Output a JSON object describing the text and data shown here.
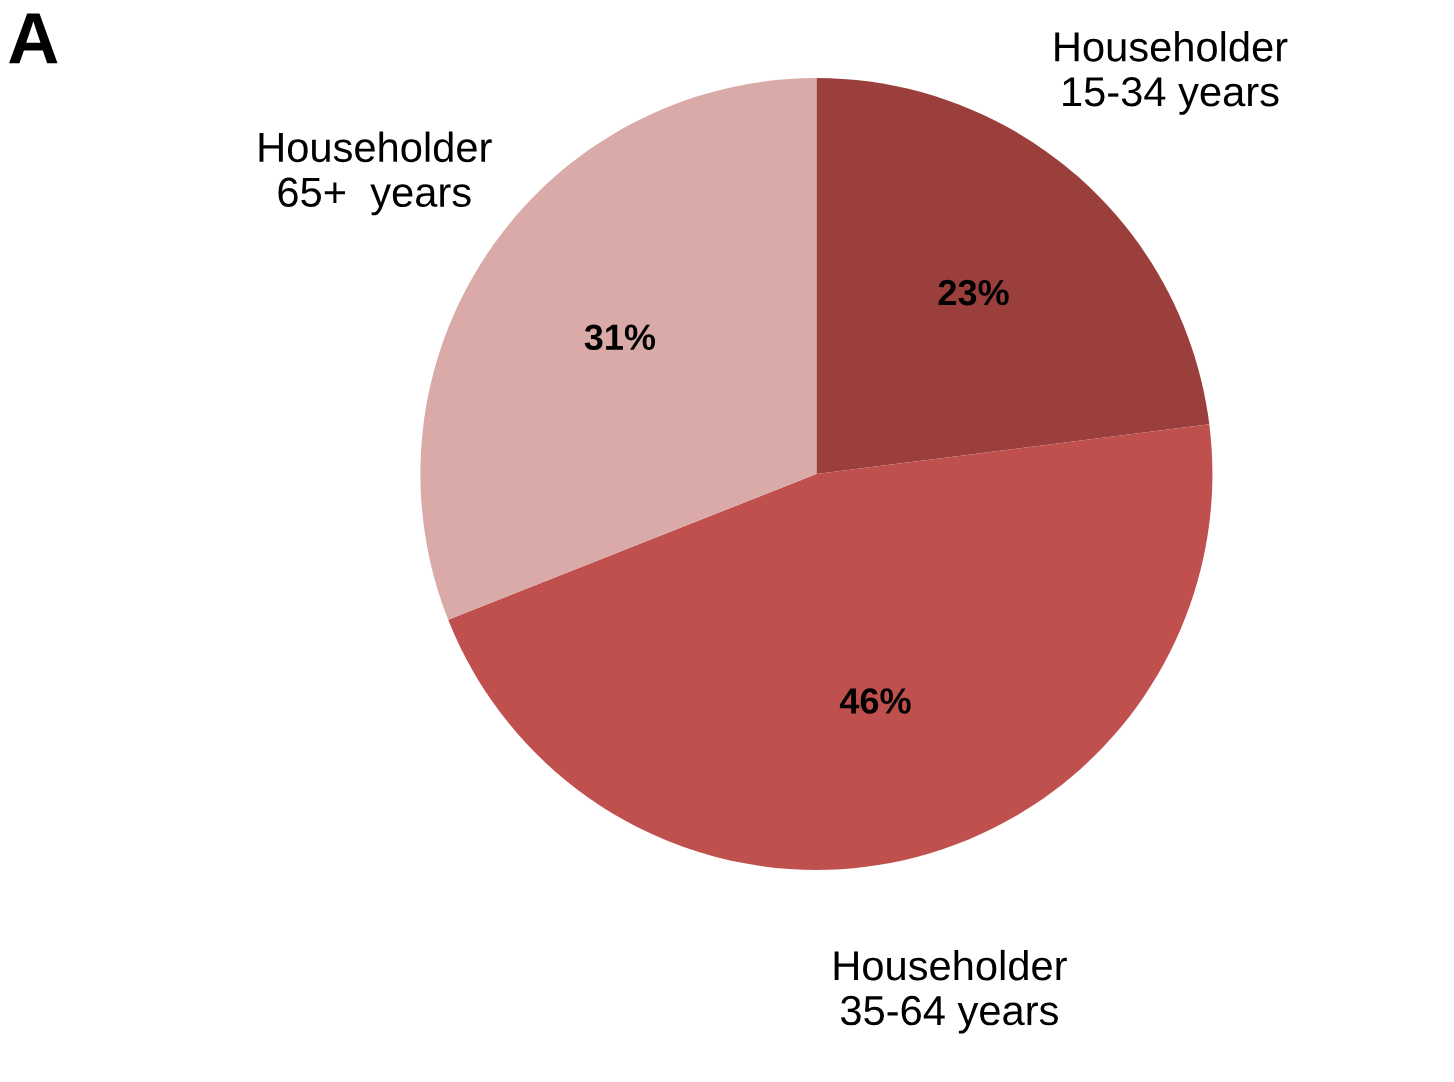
{
  "chart_data": {
    "type": "pie",
    "categories": [
      "Householder\n15-34 years",
      "Householder\n35-64 years",
      "Householder\n65+  years"
    ],
    "values": [
      23,
      46,
      31
    ],
    "colors": [
      "#9b3f3c",
      "#c0504d",
      "#d9aaa7"
    ],
    "value_labels": [
      "23%",
      "46%",
      "31%"
    ],
    "annotations": [
      "A"
    ]
  }
}
